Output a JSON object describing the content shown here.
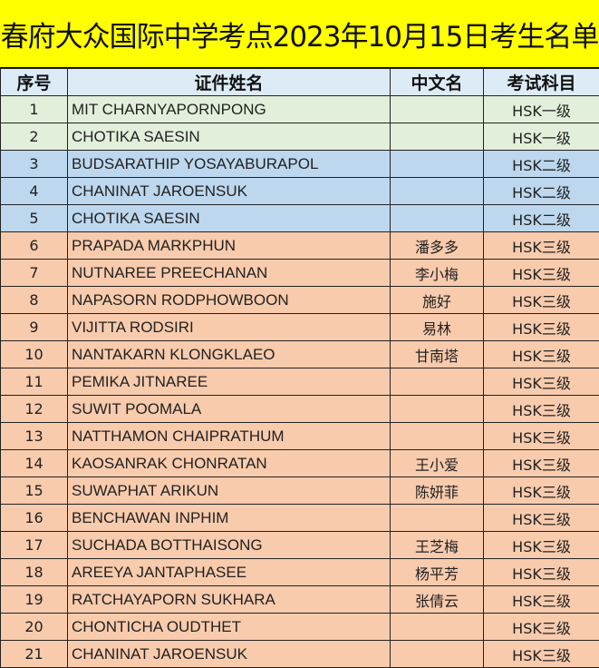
{
  "title": "春府大众国际中学考点2023年10月15日考生名单",
  "headers": [
    "序号",
    "证件姓名",
    "中文名",
    "考试科目"
  ],
  "colors": {
    "title_bg": "#ffff00",
    "header_bg": "#ddebf7",
    "level1": "#e2efda",
    "level2": "#bdd7ee",
    "level3": "#f8cbad"
  },
  "rows": [
    {
      "no": "1",
      "name": "MIT CHARNYAPORNPONG",
      "cn": "",
      "subject": "HSK一级"
    },
    {
      "no": "2",
      "name": "CHOTIKA SAESIN",
      "cn": "",
      "subject": "HSK一级"
    },
    {
      "no": "3",
      "name": "BUDSARATHIP YOSAYABURAPOL",
      "cn": "",
      "subject": "HSK二级"
    },
    {
      "no": "4",
      "name": "CHANINAT JAROENSUK",
      "cn": "",
      "subject": "HSK二级"
    },
    {
      "no": "5",
      "name": "CHOTIKA SAESIN",
      "cn": "",
      "subject": "HSK二级"
    },
    {
      "no": "6",
      "name": "PRAPADA MARKPHUN",
      "cn": "潘多多",
      "subject": "HSK三级"
    },
    {
      "no": "7",
      "name": "NUTNAREE PREECHANAN",
      "cn": "李小梅",
      "subject": "HSK三级"
    },
    {
      "no": "8",
      "name": "NAPASORN RODPHOWBOON",
      "cn": "施好",
      "subject": "HSK三级"
    },
    {
      "no": "9",
      "name": "VIJITTA RODSIRI",
      "cn": "易林",
      "subject": "HSK三级"
    },
    {
      "no": "10",
      "name": "NANTAKARN KLONGKLAEO",
      "cn": "甘南塔",
      "subject": "HSK三级"
    },
    {
      "no": "11",
      "name": "PEMIKA JITNAREE",
      "cn": "",
      "subject": "HSK三级"
    },
    {
      "no": "12",
      "name": "SUWIT POOMALA",
      "cn": "",
      "subject": "HSK三级"
    },
    {
      "no": "13",
      "name": "NATTHAMON CHAIPRATHUM",
      "cn": "",
      "subject": "HSK三级"
    },
    {
      "no": "14",
      "name": "KAOSANRAK CHONRATAN",
      "cn": "王小爱",
      "subject": "HSK三级"
    },
    {
      "no": "15",
      "name": "SUWAPHAT ARIKUN",
      "cn": "陈妍菲",
      "subject": "HSK三级"
    },
    {
      "no": "16",
      "name": "BENCHAWAN INPHIM",
      "cn": "",
      "subject": "HSK三级"
    },
    {
      "no": "17",
      "name": "SUCHADA BOTTHAISONG",
      "cn": "王芝梅",
      "subject": "HSK三级"
    },
    {
      "no": "18",
      "name": "AREEYA JANTAPHASEE",
      "cn": "杨平芳",
      "subject": "HSK三级"
    },
    {
      "no": "19",
      "name": "RATCHAYAPORN SUKHARA",
      "cn": "张倩云",
      "subject": "HSK三级"
    },
    {
      "no": "20",
      "name": "CHONTICHA OUDTHET",
      "cn": "",
      "subject": "HSK三级"
    },
    {
      "no": "21",
      "name": "CHANINAT JAROENSUK",
      "cn": "",
      "subject": "HSK三级"
    }
  ]
}
